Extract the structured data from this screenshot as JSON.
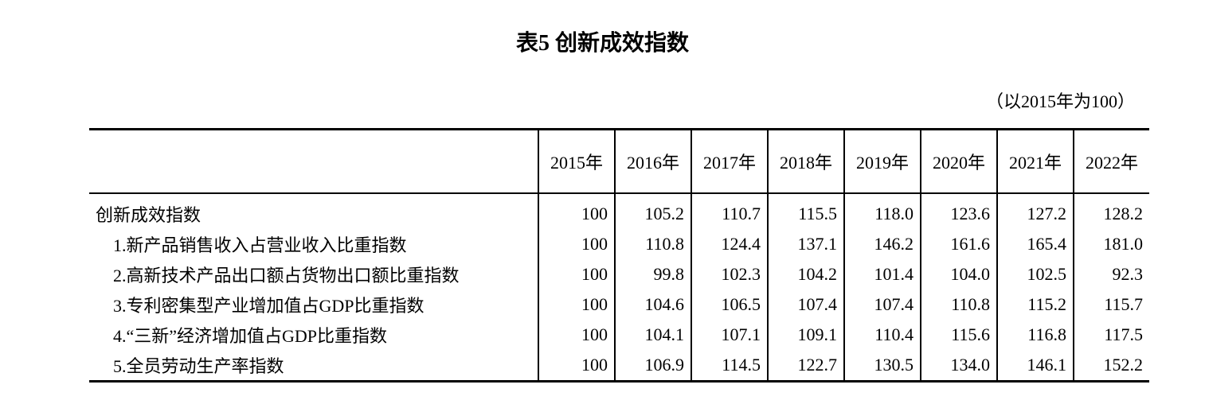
{
  "title": "表5 创新成效指数",
  "unit": "（以2015年为100）",
  "table": {
    "headers": [
      "",
      "2015年",
      "2016年",
      "2017年",
      "2018年",
      "2019年",
      "2020年",
      "2021年",
      "2022年"
    ],
    "rows": [
      {
        "label": "创新成效指数",
        "values": [
          "100",
          "105.2",
          "110.7",
          "115.5",
          "118.0",
          "123.6",
          "127.2",
          "128.2"
        ]
      },
      {
        "label": "1.新产品销售收入占营业收入比重指数",
        "values": [
          "100",
          "110.8",
          "124.4",
          "137.1",
          "146.2",
          "161.6",
          "165.4",
          "181.0"
        ]
      },
      {
        "label": "2.高新技术产品出口额占货物出口额比重指数",
        "values": [
          "100",
          "99.8",
          "102.3",
          "104.2",
          "101.4",
          "104.0",
          "102.5",
          "92.3"
        ]
      },
      {
        "label": "3.专利密集型产业增加值占GDP比重指数",
        "values": [
          "100",
          "104.6",
          "106.5",
          "107.4",
          "107.4",
          "110.8",
          "115.2",
          "115.7"
        ]
      },
      {
        "label": "4.“三新”经济增加值占GDP比重指数",
        "values": [
          "100",
          "104.1",
          "107.1",
          "109.1",
          "110.4",
          "115.6",
          "116.8",
          "117.5"
        ]
      },
      {
        "label": "5.全员劳动生产率指数",
        "values": [
          "100",
          "106.9",
          "114.5",
          "122.7",
          "130.5",
          "134.0",
          "146.1",
          "152.2"
        ]
      }
    ]
  }
}
